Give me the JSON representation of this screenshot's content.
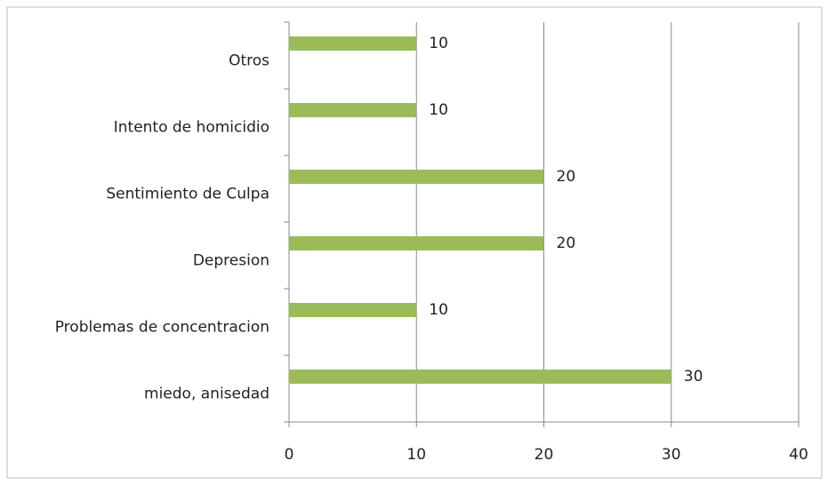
{
  "chart_data": {
    "type": "bar",
    "orientation": "horizontal",
    "categories": [
      "miedo, anisedad",
      "Problemas de concentracion",
      "Depresion",
      "Sentimiento de Culpa",
      "Intento de homicidio",
      "Otros"
    ],
    "values": [
      30,
      10,
      20,
      20,
      10,
      10
    ],
    "color": "#9bbb59",
    "xlim": [
      0,
      40
    ],
    "xticks": [
      0,
      10,
      20,
      30,
      40
    ],
    "grid": true
  }
}
